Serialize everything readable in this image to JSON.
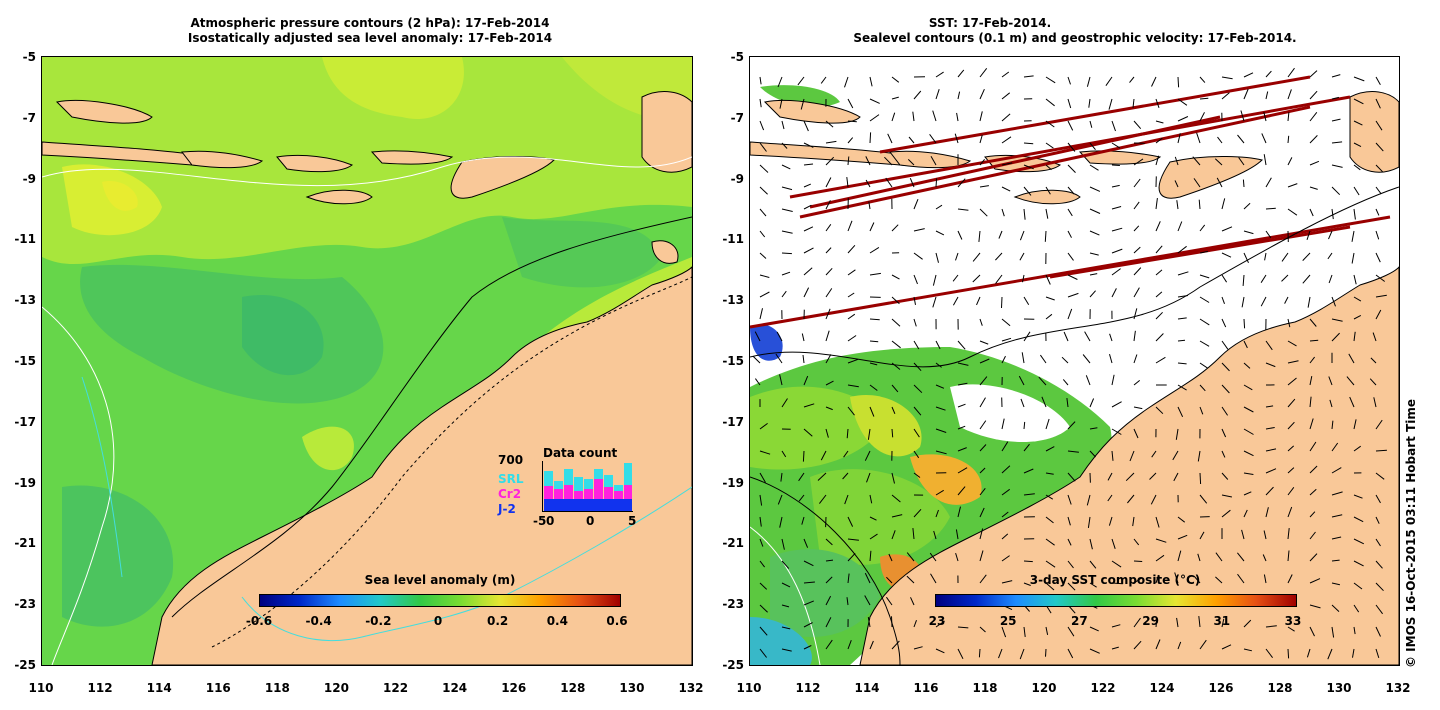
{
  "left_panel": {
    "title_line1": "Atmospheric pressure contours (2 hPa): 17-Feb-2014",
    "title_line2": "Isostatically adjusted sea level anomaly: 17-Feb-2014",
    "colorbar_title": "Sea level anomaly (m)",
    "colorbar_ticks": [
      "-0.6",
      "-0.4",
      "-0.2",
      "0",
      "0.2",
      "0.4",
      "0.6"
    ],
    "data_count": {
      "title": "Data count",
      "max_label": "700",
      "series": [
        "SRL",
        "Cr2",
        "J-2"
      ],
      "series_colors": [
        "#33dde8",
        "#ff22dd",
        "#1133ee"
      ],
      "x_ticks": [
        "-5",
        "0",
        "0",
        "5"
      ]
    }
  },
  "right_panel": {
    "title_line1": "SST: 17-Feb-2014.",
    "title_line2": "Sealevel contours (0.1 m) and geostrophic velocity: 17-Feb-2014.",
    "colorbar_title": "3-day SST composite (°C)",
    "colorbar_ticks": [
      "23",
      "25",
      "27",
      "29",
      "31",
      "33"
    ]
  },
  "y_axis_ticks": [
    "-5",
    "-7",
    "-9",
    "-11",
    "-13",
    "-15",
    "-17",
    "-19",
    "-21",
    "-23",
    "-25"
  ],
  "x_axis_ticks": [
    "110",
    "112",
    "114",
    "116",
    "118",
    "120",
    "122",
    "124",
    "126",
    "128",
    "130",
    "132"
  ],
  "credit": "© IMOS 16-Oct-2015 03:11 Hobart Time",
  "colors": {
    "land": "#f9c898",
    "ocean_green": "#66d64a",
    "ocean_yellowgreen": "#b8ea3a",
    "current_red": "#990000"
  }
}
